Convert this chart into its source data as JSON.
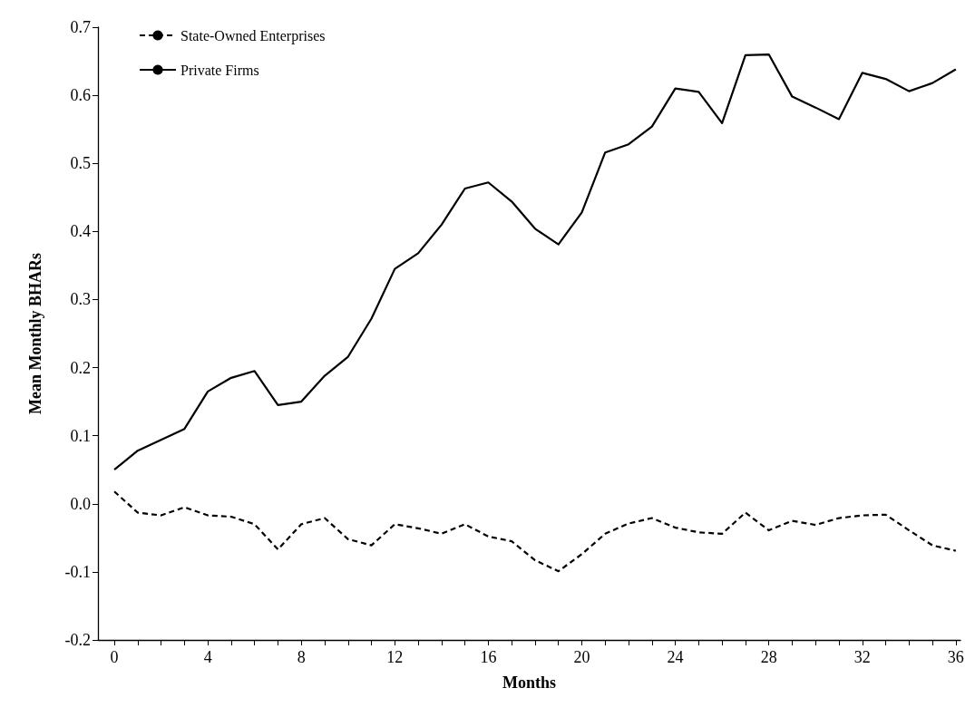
{
  "chart_data": {
    "type": "line",
    "xlabel": "Months",
    "ylabel": "Mean Monthly BHARs",
    "x": [
      0,
      1,
      2,
      3,
      4,
      5,
      6,
      7,
      8,
      9,
      10,
      11,
      12,
      13,
      14,
      15,
      16,
      17,
      18,
      19,
      20,
      21,
      22,
      23,
      24,
      25,
      26,
      27,
      28,
      29,
      30,
      31,
      32,
      33,
      34,
      35,
      36
    ],
    "series": [
      {
        "name": "State-Owned Enterprises",
        "color": "#000000",
        "line_style": "dashed",
        "values": [
          0.018,
          -0.013,
          -0.017,
          -0.005,
          -0.017,
          -0.019,
          -0.03,
          -0.067,
          -0.03,
          -0.021,
          -0.052,
          -0.061,
          -0.03,
          -0.036,
          -0.044,
          -0.03,
          -0.048,
          -0.055,
          -0.083,
          -0.099,
          -0.074,
          -0.044,
          -0.029,
          -0.021,
          -0.035,
          -0.042,
          -0.044,
          -0.013,
          -0.039,
          -0.025,
          -0.031,
          -0.021,
          -0.017,
          -0.016,
          -0.039,
          -0.061,
          -0.069
        ]
      },
      {
        "name": "Private Firms",
        "color": "#000000",
        "line_style": "solid",
        "values": [
          0.05,
          0.078,
          0.094,
          0.11,
          0.165,
          0.185,
          0.195,
          0.145,
          0.15,
          0.188,
          0.216,
          0.272,
          0.345,
          0.368,
          0.41,
          0.463,
          0.472,
          0.444,
          0.404,
          0.381,
          0.428,
          0.516,
          0.528,
          0.554,
          0.61,
          0.605,
          0.559,
          0.659,
          0.66,
          0.598,
          0.582,
          0.565,
          0.633,
          0.624,
          0.606,
          0.618,
          0.638
        ]
      }
    ],
    "xlim": [
      -0.7,
      36.2
    ],
    "xticks": [
      0,
      {
        "value": 1,
        "label": null
      },
      {
        "value": 2,
        "label": null
      },
      {
        "value": 3,
        "label": null
      },
      4,
      {
        "value": 5,
        "label": null
      },
      {
        "value": 6,
        "label": null
      },
      {
        "value": 7,
        "label": null
      },
      8,
      {
        "value": 9,
        "label": null
      },
      {
        "value": 10,
        "label": null
      },
      {
        "value": 11,
        "label": null
      },
      12,
      {
        "value": 13,
        "label": null
      },
      {
        "value": 14,
        "label": null
      },
      {
        "value": 15,
        "label": null
      },
      16,
      {
        "value": 17,
        "label": null
      },
      {
        "value": 18,
        "label": null
      },
      {
        "value": 19,
        "label": null
      },
      20,
      {
        "value": 21,
        "label": null
      },
      {
        "value": 22,
        "label": null
      },
      {
        "value": 23,
        "label": null
      },
      24,
      {
        "value": 25,
        "label": null
      },
      {
        "value": 26,
        "label": null
      },
      {
        "value": 27,
        "label": null
      },
      28,
      {
        "value": 29,
        "label": null
      },
      {
        "value": 30,
        "label": null
      },
      {
        "value": 31,
        "label": null
      },
      32,
      {
        "value": 33,
        "label": null
      },
      {
        "value": 34,
        "label": null
      },
      {
        "value": 35,
        "label": null
      },
      36
    ],
    "ylim": [
      -0.2,
      0.7
    ],
    "yticks": [
      -0.2,
      -0.1,
      {
        "value": 0,
        "label": "0.0"
      },
      0.1,
      0.2,
      0.3,
      0.4,
      0.5,
      0.6,
      0.7
    ],
    "grid": false,
    "legend": "top left",
    "marker": "none"
  }
}
